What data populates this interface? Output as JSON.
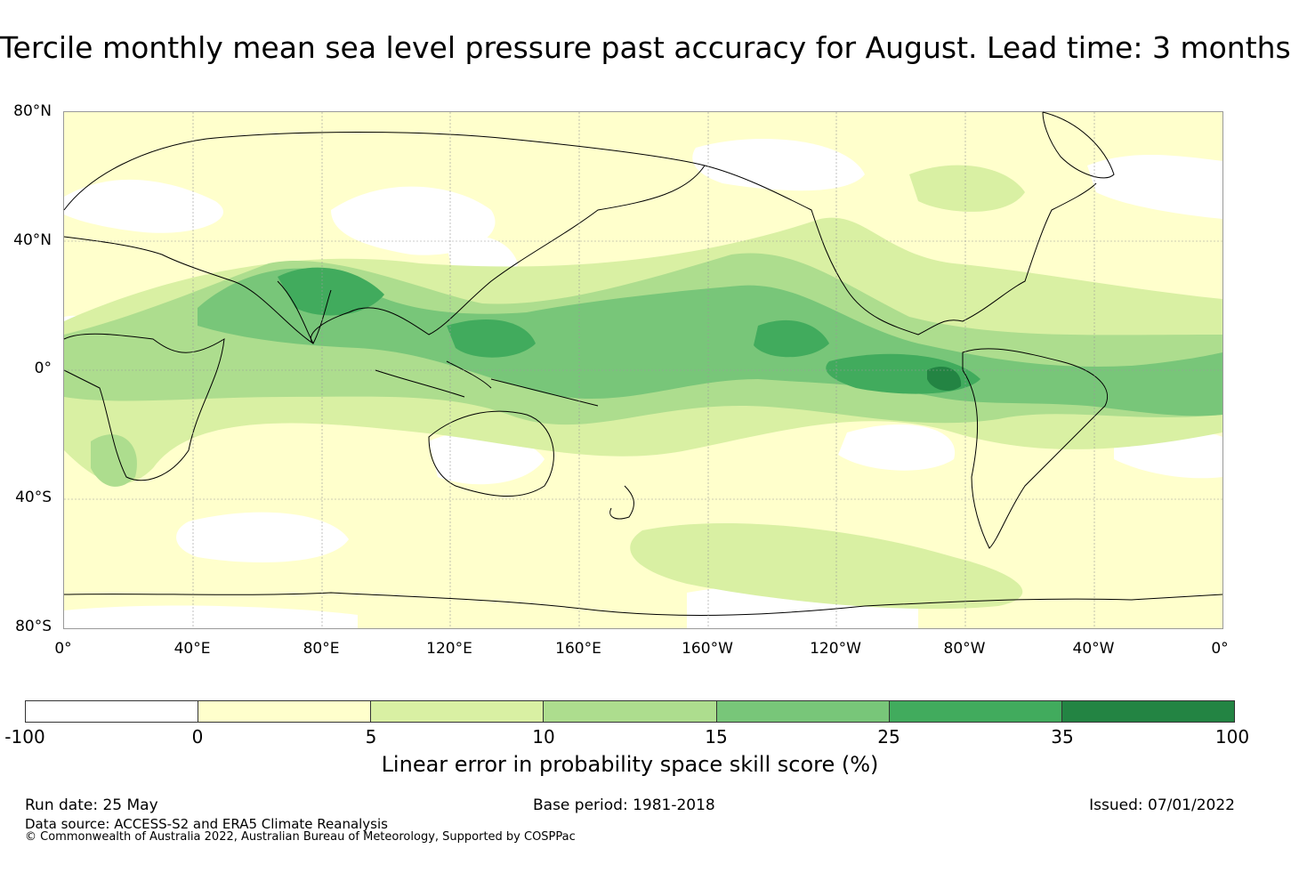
{
  "title": "Tercile monthly mean sea level pressure past accuracy for August. Lead time: 3 months",
  "map": {
    "lat_labels": [
      "80°N",
      "40°N",
      "0°",
      "40°S",
      "80°S"
    ],
    "lon_labels": [
      "0°",
      "40°E",
      "80°E",
      "120°E",
      "160°E",
      "160°W",
      "120°W",
      "80°W",
      "40°W",
      "0°"
    ],
    "land_outline_color": "#000000",
    "gridline_color": "#999999"
  },
  "colorbar": {
    "title": "Linear error in probability space skill score (%)",
    "ticks": [
      "-100",
      "0",
      "5",
      "10",
      "15",
      "25",
      "35",
      "100"
    ],
    "colors": [
      "#ffffff",
      "#ffffcc",
      "#d9f0a3",
      "#addd8e",
      "#78c679",
      "#41ab5d",
      "#238443"
    ]
  },
  "footer": {
    "run_date": "Run date: 25 May",
    "base_period": "Base period: 1981-2018",
    "issued": "Issued: 07/01/2022",
    "data_source": "Data source: ACCESS-S2 and ERA5 Climate Reanalysis",
    "copyright": "© Commonwealth of Australia 2022, Australian Bureau of Meteorology, Supported by COSPPac"
  }
}
